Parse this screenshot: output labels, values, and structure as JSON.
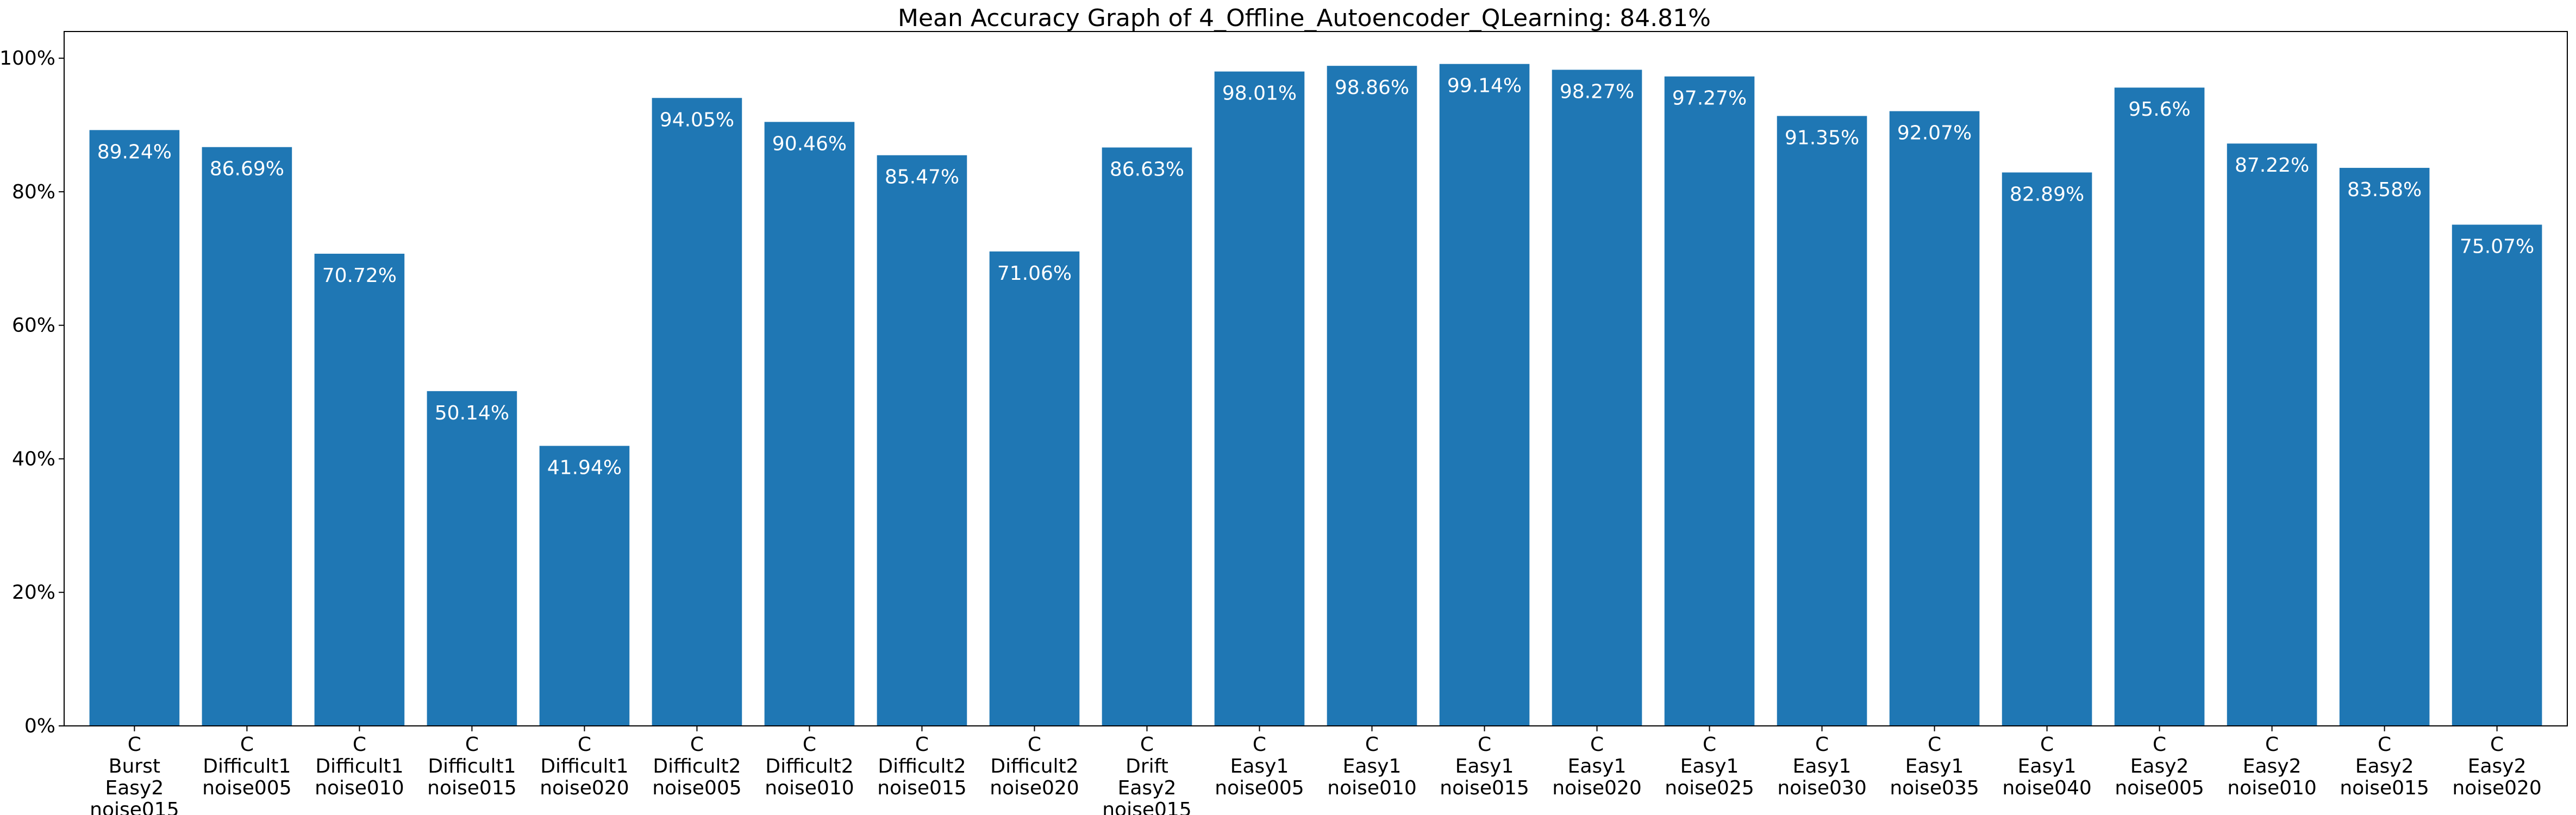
{
  "chart_data": {
    "type": "bar",
    "title": "Mean Accuracy Graph of 4_Offline_Autoencoder_QLearning: 84.81%",
    "xlabel": "",
    "ylabel": "",
    "ylim": [
      0,
      104
    ],
    "yticks": [
      0,
      20,
      40,
      60,
      80,
      100
    ],
    "ytick_labels": [
      "0%",
      "20%",
      "40%",
      "60%",
      "80%",
      "100%"
    ],
    "bar_color": "#1f77b4",
    "grid": false,
    "categories": [
      [
        "C",
        "Burst",
        "Easy2",
        "noise015"
      ],
      [
        "C",
        "Difficult1",
        "noise005"
      ],
      [
        "C",
        "Difficult1",
        "noise010"
      ],
      [
        "C",
        "Difficult1",
        "noise015"
      ],
      [
        "C",
        "Difficult1",
        "noise020"
      ],
      [
        "C",
        "Difficult2",
        "noise005"
      ],
      [
        "C",
        "Difficult2",
        "noise010"
      ],
      [
        "C",
        "Difficult2",
        "noise015"
      ],
      [
        "C",
        "Difficult2",
        "noise020"
      ],
      [
        "C",
        "Drift",
        "Easy2",
        "noise015"
      ],
      [
        "C",
        "Easy1",
        "noise005"
      ],
      [
        "C",
        "Easy1",
        "noise010"
      ],
      [
        "C",
        "Easy1",
        "noise015"
      ],
      [
        "C",
        "Easy1",
        "noise020"
      ],
      [
        "C",
        "Easy1",
        "noise025"
      ],
      [
        "C",
        "Easy1",
        "noise030"
      ],
      [
        "C",
        "Easy1",
        "noise035"
      ],
      [
        "C",
        "Easy1",
        "noise040"
      ],
      [
        "C",
        "Easy2",
        "noise005"
      ],
      [
        "C",
        "Easy2",
        "noise010"
      ],
      [
        "C",
        "Easy2",
        "noise015"
      ],
      [
        "C",
        "Easy2",
        "noise020"
      ]
    ],
    "values": [
      89.24,
      86.69,
      70.72,
      50.14,
      41.94,
      94.05,
      90.46,
      85.47,
      71.06,
      86.63,
      98.01,
      98.86,
      99.14,
      98.27,
      97.27,
      91.35,
      92.07,
      82.89,
      95.6,
      87.22,
      83.58,
      75.07
    ],
    "data_labels": [
      "89.24%",
      "86.69%",
      "70.72%",
      "50.14%",
      "41.94%",
      "94.05%",
      "90.46%",
      "85.47%",
      "71.06%",
      "86.63%",
      "98.01%",
      "98.86%",
      "99.14%",
      "98.27%",
      "97.27%",
      "91.35%",
      "92.07%",
      "82.89%",
      "95.6%",
      "87.22%",
      "83.58%",
      "75.07%"
    ]
  }
}
